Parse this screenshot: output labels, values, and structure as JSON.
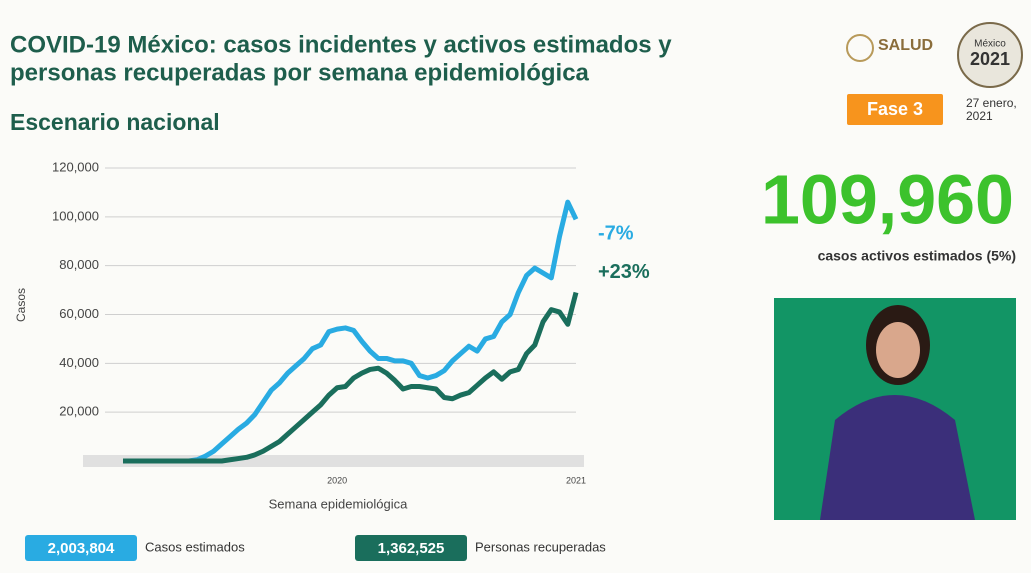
{
  "header": {
    "title_line1": "COVID-19 México: casos incidentes y activos estimados y",
    "title_line2": "personas recuperadas por semana epidemiológica",
    "subtitle": "Escenario nacional",
    "logo": "SALUD",
    "phase": "Fase 3",
    "date_line1": "27 enero,",
    "date_line2": "2021",
    "emblem_top": "México",
    "emblem_year": "2021"
  },
  "stat": {
    "value": "109,960",
    "label": "casos activos estimados (5%)"
  },
  "chart_data": {
    "type": "line",
    "x_label": "Semana epidemiológica",
    "y_label": "Casos",
    "categories": [
      null,
      null,
      null,
      null,
      null,
      null,
      null,
      null,
      null,
      null,
      null,
      null,
      null,
      null,
      null,
      null,
      null,
      null,
      null,
      null,
      null,
      null,
      null,
      null,
      null,
      null,
      "2020",
      null,
      null,
      null,
      null,
      null,
      null,
      null,
      null,
      null,
      null,
      null,
      null,
      null,
      null,
      null,
      null,
      null,
      null,
      null,
      null,
      null,
      null,
      null,
      null,
      null,
      null,
      null,
      null,
      "2021"
    ],
    "ylim": [
      0,
      120000
    ],
    "yticks": [
      {
        "value": 20000,
        "label": "20,000"
      },
      {
        "value": 40000,
        "label": "40,000"
      },
      {
        "value": 60000,
        "label": "60,000"
      },
      {
        "value": 80000,
        "label": "80,000"
      },
      {
        "value": 100000,
        "label": "100,000"
      },
      {
        "value": 120000,
        "label": "120,000"
      }
    ],
    "grid": true,
    "series": [
      {
        "name": "Casos estimados",
        "total": "2,003,804",
        "annotation": "-7%",
        "color": "#29abe2",
        "values": [
          0,
          0,
          0,
          0,
          0,
          0,
          0,
          0,
          0,
          500,
          2000,
          4000,
          7000,
          10000,
          13000,
          15500,
          19000,
          24000,
          29000,
          32000,
          36000,
          39000,
          42000,
          46000,
          47500,
          53000,
          54000,
          54500,
          53500,
          49000,
          45000,
          42000,
          42000,
          41000,
          41000,
          40000,
          35000,
          34000,
          35000,
          37000,
          41000,
          44000,
          47000,
          45000,
          50000,
          51000,
          57000,
          60000,
          69000,
          76000,
          79000,
          77000,
          75000,
          92000,
          106000,
          99000
        ]
      },
      {
        "name": "Personas recuperadas",
        "total": "1,362,525",
        "annotation": "+23%",
        "color": "#1a6e5c",
        "values": [
          0,
          0,
          0,
          0,
          0,
          0,
          0,
          0,
          0,
          0,
          0,
          0,
          0,
          500,
          1000,
          1500,
          2500,
          4000,
          6000,
          8000,
          11000,
          14000,
          17000,
          20000,
          23000,
          27000,
          30000,
          30500,
          34000,
          36000,
          37500,
          38000,
          36000,
          33000,
          29500,
          30500,
          30500,
          30000,
          29500,
          26000,
          25500,
          27000,
          28000,
          31000,
          34000,
          36500,
          33500,
          36500,
          37500,
          44000,
          47500,
          57000,
          62000,
          61000,
          56000,
          69000
        ]
      }
    ]
  }
}
